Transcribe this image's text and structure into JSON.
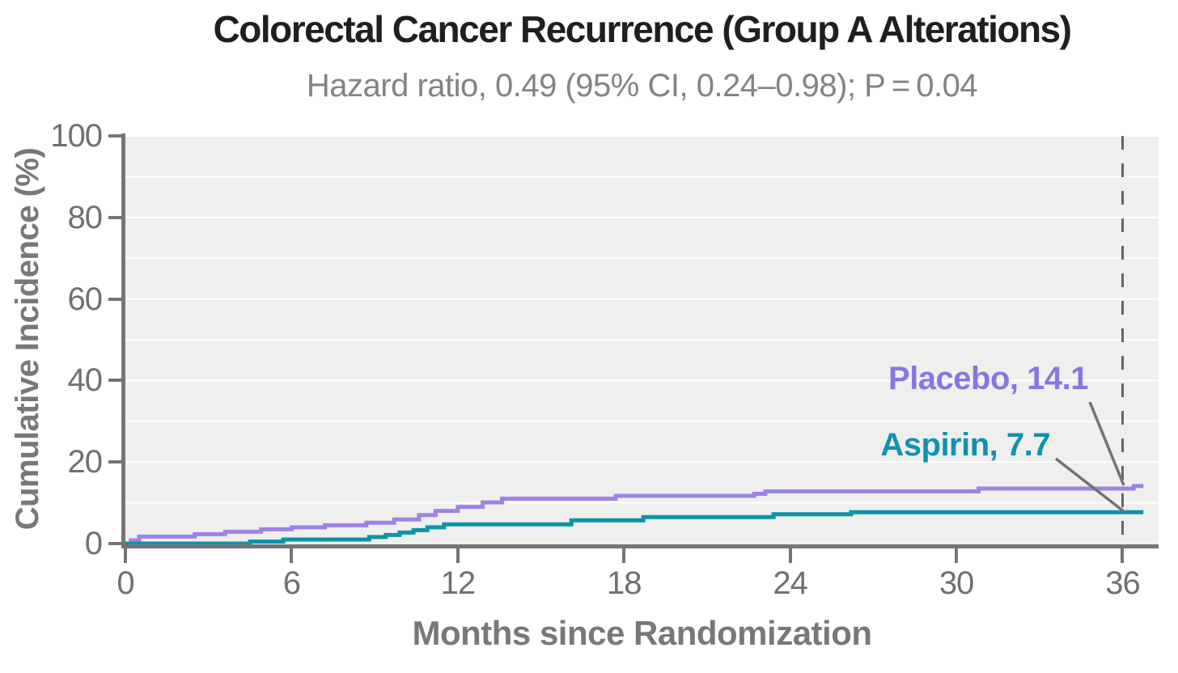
{
  "chart_data": {
    "type": "line",
    "subtype": "step",
    "title": "Colorectal Cancer Recurrence (Group A Alterations)",
    "subtitle": "Hazard ratio, 0.49 (95% CI, 0.24–0.98); P = 0.04",
    "xlabel": "Months since Randomization",
    "ylabel": "Cumulative Incidence (%)",
    "xlim": [
      0,
      37.3
    ],
    "ylim": [
      0,
      100
    ],
    "xticks": [
      0,
      6,
      12,
      18,
      24,
      30,
      36
    ],
    "yticks": [
      0,
      20,
      40,
      60,
      80,
      100
    ],
    "grid": true,
    "gridlines": {
      "step": 10,
      "color": "#ffffff"
    },
    "plot_bg": "#efefed",
    "axis_color": "#757575",
    "tick_label_color": "#6e7071",
    "title_color": "#1f1f1f",
    "subtitle_color": "#828386",
    "axis_title_color": "#77787a",
    "dashed_reference_line": {
      "x": 36,
      "color": "#666666"
    },
    "annotation_line_color": "#737373",
    "curve_x_end": 36.75,
    "legend_position": "inline-labels",
    "series": [
      {
        "name": "Placebo",
        "label": "Placebo, 14.1",
        "final_value": 14.1,
        "line_color": "#9d84e4",
        "label_color": "#8677e0",
        "x": [
          0,
          0.2,
          0.5,
          2.5,
          3.6,
          4.9,
          6.0,
          7.2,
          8.7,
          9.7,
          10.6,
          11.2,
          12.0,
          12.9,
          13.6,
          17.7,
          22.7,
          23.1,
          30.8,
          36.4
        ],
        "y": [
          0,
          0.8,
          1.7,
          2.3,
          2.9,
          3.5,
          4.0,
          4.5,
          5.1,
          5.9,
          7.0,
          8.0,
          9.0,
          10.1,
          11.0,
          11.7,
          12.2,
          12.8,
          13.5,
          14.1
        ]
      },
      {
        "name": "Aspirin",
        "label": "Aspirin, 7.7",
        "final_value": 7.7,
        "line_color": "#0e93a6",
        "label_color": "#1191b0",
        "x": [
          0,
          4.5,
          5.7,
          8.8,
          9.4,
          9.9,
          10.4,
          10.9,
          11.5,
          16.1,
          18.7,
          23.4,
          26.2
        ],
        "y": [
          0,
          0.5,
          1.0,
          1.6,
          2.1,
          2.7,
          3.3,
          4.0,
          4.7,
          5.7,
          6.5,
          7.2,
          7.7
        ]
      }
    ]
  }
}
